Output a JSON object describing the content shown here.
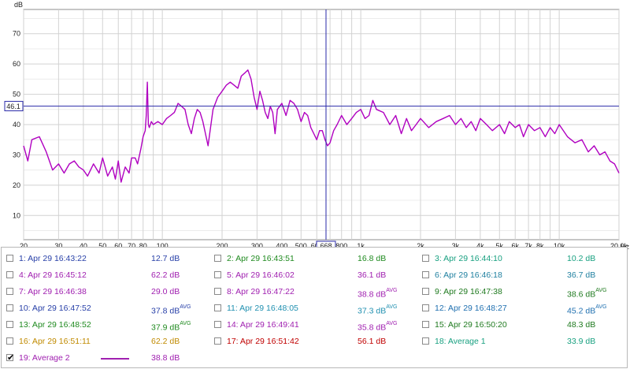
{
  "chart_data": {
    "type": "line",
    "ylabel": "dB",
    "xlabel": "Hz",
    "x_scale": "log",
    "xlim": [
      20,
      20000
    ],
    "ylim": [
      2,
      78
    ],
    "grid": true,
    "y_ticks": [
      "10",
      "20",
      "30",
      "40",
      "50",
      "60",
      "70"
    ],
    "x_ticks": [
      {
        "value": 20,
        "label": "20"
      },
      {
        "value": 30,
        "label": "30"
      },
      {
        "value": 40,
        "label": "40"
      },
      {
        "value": 50,
        "label": "50"
      },
      {
        "value": 60,
        "label": "60"
      },
      {
        "value": 70,
        "label": "70"
      },
      {
        "value": 80,
        "label": "80"
      },
      {
        "value": 100,
        "label": "100"
      },
      {
        "value": 200,
        "label": "200"
      },
      {
        "value": 300,
        "label": "300"
      },
      {
        "value": 400,
        "label": "400"
      },
      {
        "value": 500,
        "label": "500"
      },
      {
        "value": 600,
        "label": "600"
      },
      {
        "value": 800,
        "label": "800"
      },
      {
        "value": 1000,
        "label": "1k"
      },
      {
        "value": 2000,
        "label": "2k"
      },
      {
        "value": 3000,
        "label": "3k"
      },
      {
        "value": 4000,
        "label": "4k"
      },
      {
        "value": 5000,
        "label": "5k"
      },
      {
        "value": 6000,
        "label": "6k"
      },
      {
        "value": 7000,
        "label": "7k"
      },
      {
        "value": 8000,
        "label": "8k"
      },
      {
        "value": 10000,
        "label": "10k"
      },
      {
        "value": 20000,
        "label": "20.0k"
      }
    ],
    "cursor": {
      "x": 668,
      "x_label": "668",
      "y": 46.1,
      "y_label": "46.1",
      "color": "#2a2aa8"
    },
    "series": [
      {
        "name": "19: Average 2",
        "color": "#b000c0",
        "x": [
          20,
          21,
          22,
          24,
          26,
          28,
          30,
          32,
          34,
          36,
          38,
          40,
          42,
          45,
          48,
          50,
          53,
          56,
          58,
          60,
          62,
          65,
          68,
          70,
          73,
          75,
          78,
          80,
          82,
          83,
          84,
          85,
          86,
          88,
          90,
          95,
          100,
          105,
          110,
          115,
          120,
          125,
          130,
          135,
          140,
          145,
          150,
          155,
          160,
          170,
          180,
          190,
          200,
          210,
          220,
          230,
          240,
          250,
          260,
          270,
          280,
          290,
          300,
          310,
          320,
          330,
          340,
          350,
          360,
          370,
          380,
          400,
          420,
          440,
          460,
          480,
          500,
          520,
          540,
          560,
          580,
          600,
          620,
          640,
          660,
          680,
          700,
          730,
          760,
          800,
          850,
          900,
          950,
          1000,
          1050,
          1100,
          1150,
          1200,
          1300,
          1400,
          1500,
          1600,
          1700,
          1800,
          1900,
          2000,
          2200,
          2400,
          2600,
          2800,
          3000,
          3200,
          3400,
          3600,
          3800,
          4000,
          4300,
          4600,
          5000,
          5300,
          5600,
          6000,
          6300,
          6600,
          7000,
          7500,
          8000,
          8500,
          9000,
          9500,
          10000,
          11000,
          12000,
          13000,
          14000,
          15000,
          16000,
          17000,
          18000,
          19000,
          20000
        ],
        "y": [
          33,
          28,
          35,
          36,
          31,
          25,
          27,
          24,
          27,
          28,
          26,
          25,
          23,
          27,
          24,
          29,
          23,
          26,
          22,
          28,
          21,
          26,
          24,
          29,
          29,
          27,
          32,
          36,
          38,
          43,
          54,
          40,
          39,
          41,
          40,
          41,
          40,
          42,
          43,
          44,
          47,
          46,
          45,
          40,
          37,
          42,
          45,
          44,
          41,
          33,
          45,
          49,
          51,
          53,
          54,
          53,
          52,
          56,
          57,
          58,
          55,
          49,
          45,
          51,
          48,
          44,
          42,
          46,
          44,
          37,
          45,
          47,
          43,
          48,
          47,
          45,
          41,
          44,
          43,
          39,
          37,
          35,
          38,
          38,
          35,
          33,
          34,
          38,
          40,
          43,
          40,
          42,
          44,
          45,
          42,
          43,
          48,
          45,
          44,
          40,
          43,
          37,
          42,
          38,
          40,
          42,
          39,
          41,
          42,
          43,
          40,
          42,
          39,
          41,
          38,
          42,
          40,
          38,
          40,
          37,
          41,
          39,
          40,
          36,
          40,
          38,
          39,
          36,
          39,
          37,
          40,
          36,
          34,
          35,
          31,
          33,
          30,
          31,
          28,
          27,
          24
        ]
      }
    ]
  },
  "legend": {
    "entries": [
      {
        "check": false,
        "label": "1: Apr 29 16:43:22",
        "value": "12.7 dB",
        "avg": false,
        "color": "#2840a8"
      },
      {
        "check": false,
        "label": "2: Apr 29 16:43:51",
        "value": "16.8 dB",
        "avg": false,
        "color": "#1f8a1f"
      },
      {
        "check": false,
        "label": "3: Apr 29 16:44:10",
        "value": "10.2 dB",
        "avg": false,
        "color": "#18a080"
      },
      {
        "check": false,
        "label": "4: Apr 29 16:45:12",
        "value": "62.2 dB",
        "avg": false,
        "color": "#a020b0"
      },
      {
        "check": false,
        "label": "5: Apr 29 16:46:02",
        "value": "36.1 dB",
        "avg": false,
        "color": "#a020b0"
      },
      {
        "check": false,
        "label": "6: Apr 29 16:46:18",
        "value": "36.7 dB",
        "avg": false,
        "color": "#2080a0"
      },
      {
        "check": false,
        "label": "7: Apr 29 16:46:38",
        "value": "29.0 dB",
        "avg": false,
        "color": "#a020b0"
      },
      {
        "check": false,
        "label": "8: Apr 29 16:47:22",
        "value": "38.8 dB",
        "avg": true,
        "color": "#a020b0"
      },
      {
        "check": false,
        "label": "9: Apr 29 16:47:38",
        "value": "38.6 dB",
        "avg": true,
        "color": "#1f7a1f"
      },
      {
        "check": false,
        "label": "10: Apr 29 16:47:52",
        "value": "37.8 dB",
        "avg": true,
        "color": "#2840a8"
      },
      {
        "check": false,
        "label": "11: Apr 29 16:48:05",
        "value": "37.3 dB",
        "avg": true,
        "color": "#2090b0"
      },
      {
        "check": false,
        "label": "12: Apr 29 16:48:27",
        "value": "45.2 dB",
        "avg": true,
        "color": "#2070b0"
      },
      {
        "check": false,
        "label": "13: Apr 29 16:48:52",
        "value": "37.9 dB",
        "avg": true,
        "color": "#1f8a1f"
      },
      {
        "check": false,
        "label": "14: Apr 29 16:49:41",
        "value": "35.8 dB",
        "avg": true,
        "color": "#a020b0"
      },
      {
        "check": false,
        "label": "15: Apr 29 16:50:20",
        "value": "48.3 dB",
        "avg": false,
        "color": "#1f7a1f"
      },
      {
        "check": false,
        "label": "16: Apr 29 16:51:11",
        "value": "62.2 dB",
        "avg": false,
        "color": "#c08a00"
      },
      {
        "check": false,
        "label": "17: Apr 29 16:51:42",
        "value": "56.1 dB",
        "avg": false,
        "color": "#c00000"
      },
      {
        "check": false,
        "label": "18: Average 1",
        "value": "33.9 dB",
        "avg": false,
        "color": "#18a080"
      },
      {
        "check": true,
        "label": "19: Average 2",
        "value": "38.8 dB",
        "avg": false,
        "color": "#a020b0",
        "swatch": true
      }
    ],
    "avg_label": "AVG"
  }
}
